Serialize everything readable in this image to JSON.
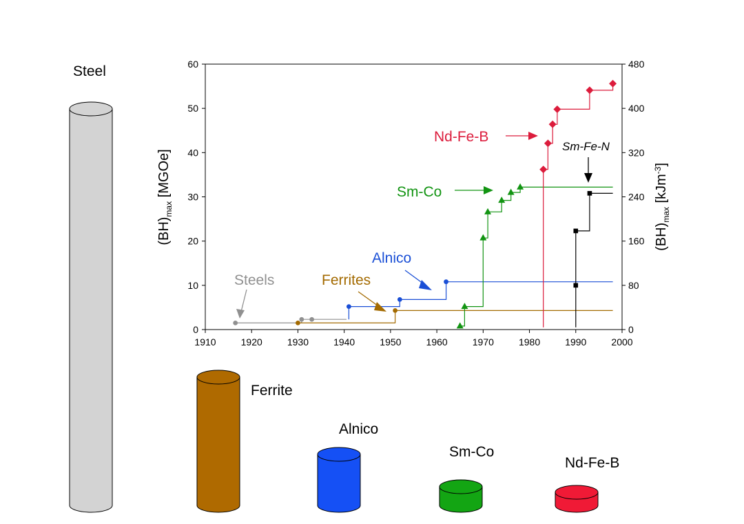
{
  "chart_data": {
    "type": "line",
    "xaxis": {
      "min": 1910,
      "max": 2000,
      "ticks": [
        1910,
        1920,
        1930,
        1940,
        1950,
        1960,
        1970,
        1980,
        1990,
        2000
      ]
    },
    "yaxis_left": {
      "label_main": "(BH)",
      "label_sub": "max",
      "label_unit": " [MGOe]",
      "min": 0,
      "max": 60,
      "ticks": [
        0,
        10,
        20,
        30,
        40,
        50,
        60
      ]
    },
    "yaxis_right": {
      "label_main": "(BH)",
      "label_sub": "max",
      "label_unit_a": " [kJm",
      "label_sup": "-3",
      "label_unit_b": "]",
      "min": 0,
      "max": 480,
      "ticks": [
        0,
        80,
        160,
        240,
        320,
        400,
        480
      ]
    },
    "grid": false,
    "series": [
      {
        "name": "Steels",
        "color": "#909090",
        "marker": "circle",
        "label_italic": false,
        "points": [
          [
            1916.5,
            1.5
          ],
          [
            1930.8,
            2.3
          ],
          [
            1933,
            2.3
          ]
        ],
        "steps": [
          [
            1916.5,
            1.5
          ],
          [
            1930.8,
            1.5
          ],
          [
            1930.8,
            2.3
          ],
          [
            1933,
            2.3
          ],
          [
            1940.5,
            2.3
          ]
        ],
        "extend_to": 1940.5
      },
      {
        "name": "Ferrites",
        "color": "#A36A00",
        "marker": "circle",
        "label_italic": false,
        "points": [
          [
            1930,
            1.5
          ],
          [
            1951,
            4.3
          ]
        ],
        "steps": [
          [
            1930,
            1.5
          ],
          [
            1951,
            1.5
          ],
          [
            1951,
            4.3
          ]
        ],
        "extend_to": 1998
      },
      {
        "name": "Alnico",
        "color": "#1A4FD6",
        "marker": "circle",
        "label_italic": false,
        "points": [
          [
            1941,
            5.2
          ],
          [
            1952,
            6.8
          ],
          [
            1962,
            10.8
          ]
        ],
        "steps": [
          [
            1941,
            2.3
          ],
          [
            1941,
            5.2
          ],
          [
            1952,
            5.2
          ],
          [
            1952,
            6.8
          ],
          [
            1962,
            6.8
          ],
          [
            1962,
            10.8
          ]
        ],
        "extend_to": 1998
      },
      {
        "name": "Sm-Co",
        "color": "#129412",
        "marker": "triangle",
        "label_italic": false,
        "points": [
          [
            1965,
            0.8
          ],
          [
            1966,
            5.2
          ],
          [
            1970,
            20.7
          ],
          [
            1971,
            26.6
          ],
          [
            1974,
            29.2
          ],
          [
            1976,
            31.0
          ],
          [
            1978,
            32.2
          ]
        ],
        "steps": [
          [
            1965,
            0.8
          ],
          [
            1966,
            0.8
          ],
          [
            1966,
            5.2
          ],
          [
            1970,
            5.2
          ],
          [
            1970,
            20.7
          ],
          [
            1971,
            20.7
          ],
          [
            1971,
            26.6
          ],
          [
            1974,
            26.6
          ],
          [
            1974,
            29.2
          ],
          [
            1976,
            29.2
          ],
          [
            1976,
            31.0
          ],
          [
            1978,
            31.0
          ],
          [
            1978,
            32.2
          ]
        ],
        "extend_to": 1998
      },
      {
        "name": "Nd-Fe-B",
        "color": "#DC1C3C",
        "marker": "diamond",
        "label_italic": false,
        "points": [
          [
            1983,
            36.2
          ],
          [
            1984,
            42.1
          ],
          [
            1985,
            46.4
          ],
          [
            1986,
            49.8
          ],
          [
            1993,
            54.1
          ],
          [
            1998,
            55.6
          ]
        ],
        "steps": [
          [
            1983,
            0.5
          ],
          [
            1983,
            36.2
          ],
          [
            1984,
            36.2
          ],
          [
            1984,
            42.1
          ],
          [
            1985,
            42.1
          ],
          [
            1985,
            46.4
          ],
          [
            1986,
            46.4
          ],
          [
            1986,
            49.8
          ],
          [
            1993,
            49.8
          ],
          [
            1993,
            54.1
          ],
          [
            1998,
            54.1
          ],
          [
            1998,
            55.6
          ]
        ],
        "extend_to": 1998
      },
      {
        "name": "Sm-Fe-N",
        "color": "#000000",
        "marker": "square",
        "label_italic": true,
        "points": [
          [
            1990,
            10.0
          ],
          [
            1990,
            22.3
          ],
          [
            1993,
            30.8
          ]
        ],
        "steps": [
          [
            1990,
            0.5
          ],
          [
            1990,
            22.3
          ],
          [
            1993,
            22.3
          ],
          [
            1993,
            30.8
          ]
        ],
        "extend_to": 1998
      }
    ]
  },
  "magnets": [
    {
      "name": "Steel",
      "color": "#D3D3D3"
    },
    {
      "name": "Ferrite",
      "color": "#AF6A00"
    },
    {
      "name": "Alnico",
      "color": "#1550F5"
    },
    {
      "name": "Sm-Co",
      "color": "#13A513"
    },
    {
      "name": "Nd-Fe-B",
      "color": "#F01A36"
    }
  ]
}
